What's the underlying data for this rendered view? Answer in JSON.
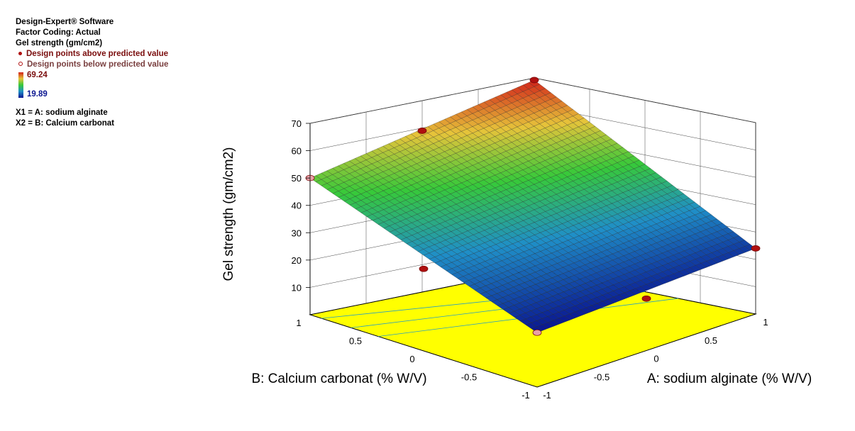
{
  "legend": {
    "software": "Design-Expert® Software",
    "factor_coding": "Factor Coding: Actual",
    "response": "Gel strength (gm/cm2)",
    "above_label": "Design points above predicted value",
    "below_label": "Design points below predicted value",
    "range_max": "69.24",
    "range_min": "19.89",
    "x1": "X1 = A: sodium alginate",
    "x2": "X2 = B: Calcium carbonat"
  },
  "colors": {
    "above_point": "#b01010",
    "below_point": "#e8a0a8",
    "floor": "#ffff00",
    "high": "#d2231a",
    "mid": "#37c93a",
    "low": "#0a1590"
  },
  "chart_data": {
    "type": "surface",
    "title": "",
    "zlabel": "Gel strength (gm/cm2)",
    "xlabel": "A: sodium alginate (% W/V)",
    "ylabel": "B: Calcium carbonat (% W/V)",
    "z_ticks": [
      "10",
      "20",
      "30",
      "40",
      "50",
      "60",
      "70"
    ],
    "a_ticks": [
      "-1",
      "-0.5",
      "0",
      "0.5",
      "1"
    ],
    "b_ticks": [
      "-1",
      "-0.5",
      "0",
      "0.5",
      "1"
    ],
    "z_range": [
      0,
      70
    ],
    "a_range": [
      -1,
      1
    ],
    "b_range": [
      -1,
      1
    ],
    "surface_corners": {
      "a_minus_b_minus": 19.89,
      "a_plus_b_minus": 24,
      "a_minus_b_plus": 50,
      "a_plus_b_plus": 69.24
    },
    "design_points": [
      {
        "a": 1,
        "b": 1,
        "z": 69.24,
        "status": "above"
      },
      {
        "a": 0,
        "b": 1,
        "z": 59,
        "status": "above"
      },
      {
        "a": -1,
        "b": 1,
        "z": 50,
        "status": "below"
      },
      {
        "a": -1,
        "b": 0,
        "z": 30,
        "status": "above"
      },
      {
        "a": 1,
        "b": -1,
        "z": 24,
        "status": "above"
      },
      {
        "a": 0,
        "b": -1,
        "z": 19,
        "status": "above"
      },
      {
        "a": -1,
        "b": -1,
        "z": 19.89,
        "status": "below"
      }
    ],
    "grid": true
  }
}
